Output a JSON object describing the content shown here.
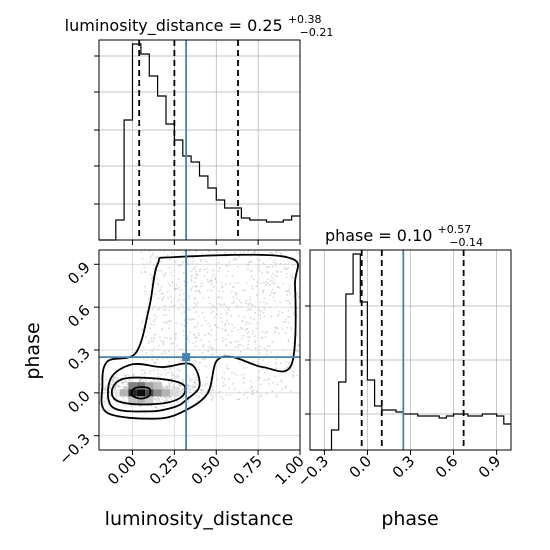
{
  "chart_data": [
    {
      "type": "histogram",
      "panel": "marginal luminosity_distance",
      "title": {
        "main": "luminosity_distance = 0.25",
        "sup": "+0.38",
        "sub": "−0.21"
      },
      "xlim": [
        -0.2,
        1.0
      ],
      "bins": {
        "start": -0.2,
        "width": 0.05
      },
      "values": [
        0.0,
        0.0,
        0.1,
        0.6,
        0.98,
        0.93,
        0.82,
        0.72,
        0.58,
        0.5,
        0.42,
        0.39,
        0.32,
        0.26,
        0.2,
        0.16,
        0.16,
        0.11,
        0.1,
        0.1,
        0.09,
        0.09,
        0.1,
        0.12
      ],
      "dashed_lines": [
        0.04,
        0.25,
        0.63
      ],
      "truth_line": 0.32,
      "grid": true,
      "colors": {
        "step": "#000000",
        "truth": "#4682b4",
        "grid": "#b0b0b0"
      }
    },
    {
      "type": "histogram",
      "panel": "marginal phase",
      "title": {
        "main": "phase = 0.10",
        "sup": "+0.57",
        "sub": "−0.14"
      },
      "xlim": [
        -0.4,
        1.0
      ],
      "xticks": [
        "−0.3",
        "0.0",
        "0.3",
        "0.6",
        "0.9"
      ],
      "xlabel": "phase",
      "bins": {
        "start": -0.4,
        "width": 0.05
      },
      "values": [
        0.0,
        0.0,
        0.0,
        0.1,
        0.34,
        0.78,
        0.98,
        0.74,
        0.35,
        0.22,
        0.2,
        0.2,
        0.19,
        0.18,
        0.18,
        0.17,
        0.17,
        0.17,
        0.16,
        0.17,
        0.18,
        0.18,
        0.17,
        0.17,
        0.18,
        0.18,
        0.17,
        0.13
      ],
      "dashed_lines": [
        -0.04,
        0.1,
        0.67
      ],
      "truth_line": 0.25,
      "grid": true,
      "colors": {
        "step": "#000000",
        "truth": "#4682b4",
        "grid": "#b0b0b0"
      }
    },
    {
      "type": "heatmap",
      "panel": "2d luminosity_distance vs phase",
      "xlabel": "luminosity_distance",
      "ylabel": "phase",
      "xlim": [
        -0.2,
        1.0
      ],
      "ylim": [
        -0.4,
        1.0
      ],
      "xticks": [
        "0.00",
        "0.25",
        "0.50",
        "0.75",
        "1.00"
      ],
      "yticks": [
        "−0.3",
        "0.0",
        "0.3",
        "0.6",
        "0.9"
      ],
      "density_cells": [
        {
          "x": 0.05,
          "y": 0.0,
          "v": 0.95
        },
        {
          "x": 0.0,
          "y": 0.0,
          "v": 0.85
        },
        {
          "x": 0.1,
          "y": 0.0,
          "v": 0.7
        },
        {
          "x": 0.05,
          "y": 0.05,
          "v": 0.55
        },
        {
          "x": 0.0,
          "y": 0.05,
          "v": 0.5
        },
        {
          "x": 0.15,
          "y": 0.0,
          "v": 0.45
        },
        {
          "x": 0.1,
          "y": 0.05,
          "v": 0.35
        },
        {
          "x": 0.2,
          "y": 0.0,
          "v": 0.3
        },
        {
          "x": 0.15,
          "y": 0.05,
          "v": 0.25
        },
        {
          "x": -0.05,
          "y": 0.0,
          "v": 0.3
        },
        {
          "x": 0.25,
          "y": 0.0,
          "v": 0.15
        },
        {
          "x": 0.05,
          "y": -0.05,
          "v": 0.3
        },
        {
          "x": 0.0,
          "y": -0.05,
          "v": 0.25
        },
        {
          "x": 0.1,
          "y": -0.05,
          "v": 0.2
        },
        {
          "x": 0.3,
          "y": 0.0,
          "v": 0.1
        }
      ],
      "contours": [
        [
          [
            0.0,
            -0.02
          ],
          [
            0.05,
            -0.04
          ],
          [
            0.1,
            -0.02
          ],
          [
            0.1,
            0.03
          ],
          [
            0.04,
            0.04
          ],
          [
            0.0,
            0.02
          ]
        ],
        [
          [
            -0.1,
            -0.05
          ],
          [
            0.02,
            -0.08
          ],
          [
            0.2,
            -0.07
          ],
          [
            0.3,
            -0.02
          ],
          [
            0.3,
            0.06
          ],
          [
            0.15,
            0.1
          ],
          [
            -0.05,
            0.1
          ],
          [
            -0.12,
            0.03
          ]
        ],
        [
          [
            -0.12,
            -0.1
          ],
          [
            0.1,
            -0.13
          ],
          [
            0.25,
            -0.1
          ],
          [
            0.32,
            -0.05
          ],
          [
            0.4,
            0.05
          ],
          [
            0.35,
            0.2
          ],
          [
            0.18,
            0.18
          ],
          [
            0.0,
            0.2
          ],
          [
            -0.13,
            0.1
          ]
        ],
        [
          [
            -0.15,
            -0.14
          ],
          [
            0.15,
            -0.18
          ],
          [
            0.32,
            -0.12
          ],
          [
            0.45,
            0.0
          ],
          [
            0.5,
            0.22
          ],
          [
            0.6,
            0.25
          ],
          [
            0.78,
            0.18
          ],
          [
            0.95,
            0.2
          ],
          [
            0.97,
            0.75
          ],
          [
            0.92,
            0.95
          ],
          [
            0.25,
            0.95
          ],
          [
            0.15,
            0.9
          ],
          [
            0.1,
            0.6
          ],
          [
            0.02,
            0.28
          ],
          [
            -0.15,
            0.22
          ],
          [
            -0.18,
            0.05
          ]
        ]
      ],
      "truth": {
        "x": 0.32,
        "y": 0.25
      },
      "colors": {
        "contour": "#000000",
        "truth": "#4682b4",
        "scatter": "#c8c8c8"
      }
    }
  ]
}
